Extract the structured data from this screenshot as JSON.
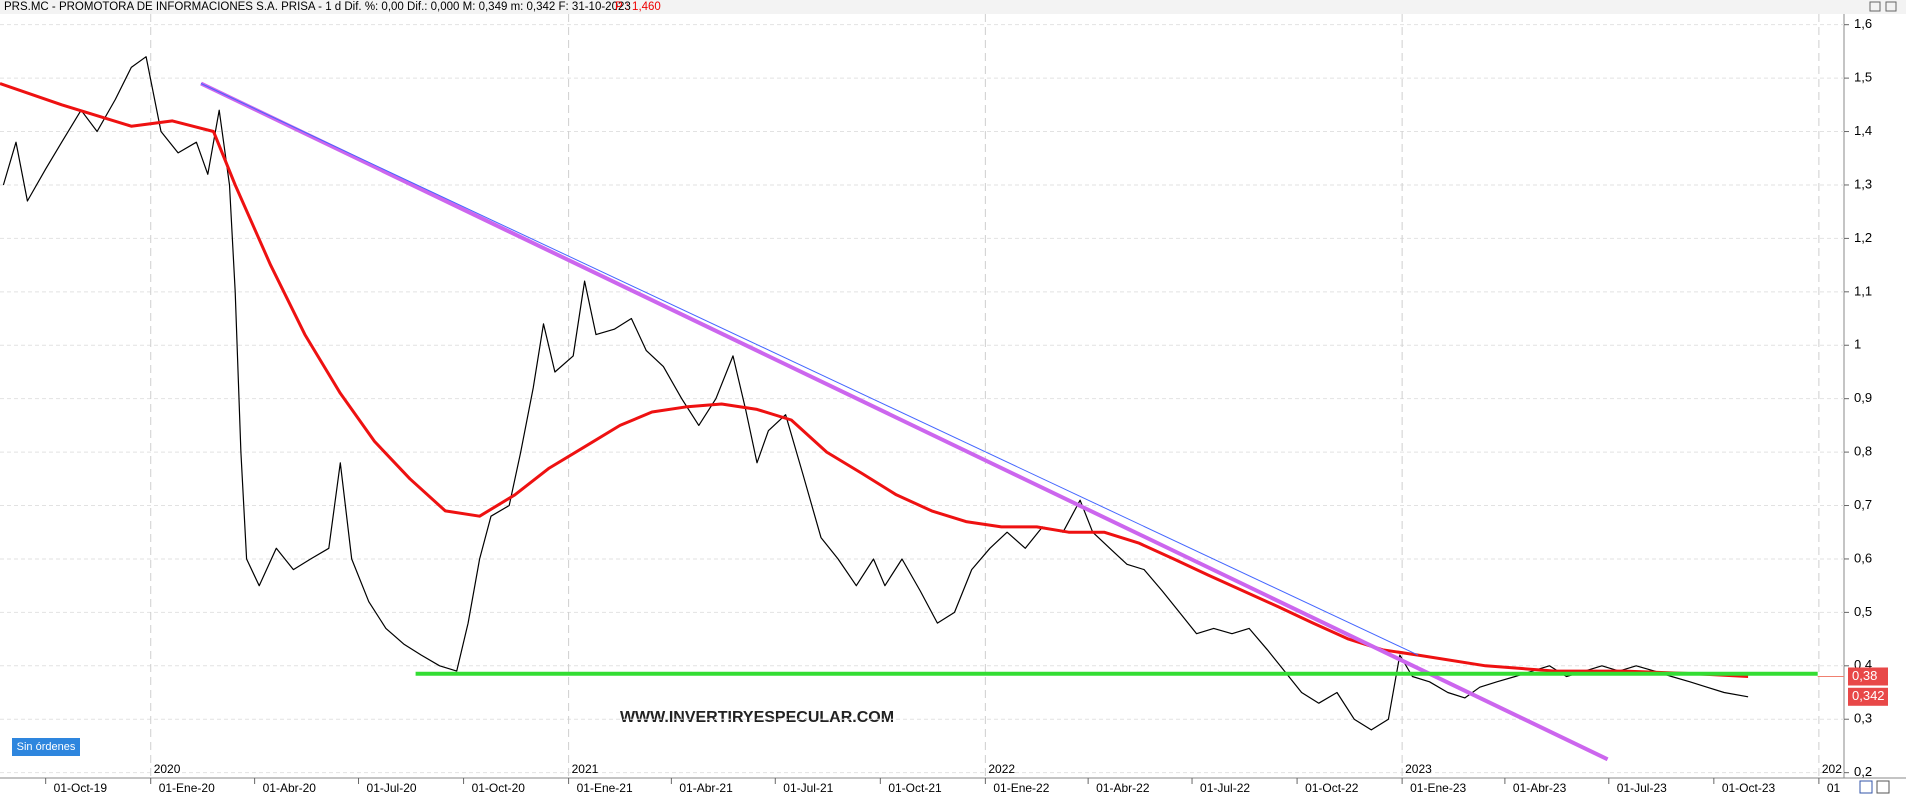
{
  "header": {
    "title": "PRS.MC - PROMOTORA DE INFORMACIONES S.A. PRISA - 1 d  Dif. %: 0,00  Dif.: 0,000  M: 0,349  m: 0,342  F: 31-10-2023",
    "price": "P : 1,460"
  },
  "watermark": "WWW.INVERTIRYESPECULAR.COM",
  "orders_badge": "Sin órdenes",
  "chart_data": {
    "type": "line",
    "xlim": [
      "2019-08-22",
      "2024-01-23"
    ],
    "ylim": [
      0.19,
      1.62
    ],
    "yticks": [
      {
        "value": 0.2,
        "label": "0,2"
      },
      {
        "value": 0.3,
        "label": "0,3"
      },
      {
        "value": 0.4,
        "label": "0,4"
      },
      {
        "value": 0.5,
        "label": "0,5"
      },
      {
        "value": 0.6,
        "label": "0,6"
      },
      {
        "value": 0.7,
        "label": "0,7"
      },
      {
        "value": 0.8,
        "label": "0,8"
      },
      {
        "value": 0.9,
        "label": "0,9"
      },
      1,
      {
        "value": 1.1,
        "label": "1,1"
      },
      {
        "value": 1.2,
        "label": "1,2"
      },
      {
        "value": 1.3,
        "label": "1,3"
      },
      {
        "value": 1.4,
        "label": "1,4"
      },
      {
        "value": 1.5,
        "label": "1,5"
      },
      {
        "value": 1.6,
        "label": "1,6"
      }
    ],
    "xticks": [
      {
        "value": "2019-10-01",
        "label": "01-Oct-19"
      },
      {
        "value": "2020-01-01",
        "label": "01-Ene-20"
      },
      {
        "value": "2020-04-01",
        "label": "01-Abr-20"
      },
      {
        "value": "2020-07-01",
        "label": "01-Jul-20"
      },
      {
        "value": "2020-10-01",
        "label": "01-Oct-20"
      },
      {
        "value": "2021-01-01",
        "label": "01-Ene-21"
      },
      {
        "value": "2021-04-01",
        "label": "01-Abr-21"
      },
      {
        "value": "2021-07-01",
        "label": "01-Jul-21"
      },
      {
        "value": "2021-10-01",
        "label": "01-Oct-21"
      },
      {
        "value": "2022-01-01",
        "label": "01-Ene-22"
      },
      {
        "value": "2022-04-01",
        "label": "01-Abr-22"
      },
      {
        "value": "2022-07-01",
        "label": "01-Jul-22"
      },
      {
        "value": "2022-10-01",
        "label": "01-Oct-22"
      },
      {
        "value": "2023-01-01",
        "label": "01-Ene-23"
      },
      {
        "value": "2023-04-01",
        "label": "01-Abr-23"
      },
      {
        "value": "2023-07-01",
        "label": "01-Jul-23"
      },
      {
        "value": "2023-10-01",
        "label": "01-Oct-23"
      },
      {
        "value": "2024-01-01",
        "label": "01"
      }
    ],
    "year_ticks": [
      {
        "value": "2020-01-01",
        "label": "2020"
      },
      {
        "value": "2021-01-01",
        "label": "2021"
      },
      {
        "value": "2022-01-01",
        "label": "2022"
      },
      {
        "value": "2023-01-01",
        "label": "2023"
      },
      {
        "value": "2024-01-01",
        "label": "202"
      }
    ],
    "grid": true,
    "series": [
      {
        "color": "#000000",
        "width": 1.2,
        "x": [
          "2019-08-25",
          "2019-09-05",
          "2019-09-15",
          "2019-10-01",
          "2019-10-15",
          "2019-11-01",
          "2019-11-15",
          "2019-12-01",
          "2019-12-15",
          "2019-12-28",
          "2020-01-10",
          "2020-01-25",
          "2020-02-10",
          "2020-02-20",
          "2020-03-01",
          "2020-03-10",
          "2020-03-15",
          "2020-03-20",
          "2020-03-25",
          "2020-04-05",
          "2020-04-20",
          "2020-05-05",
          "2020-05-20",
          "2020-06-05",
          "2020-06-15",
          "2020-06-25",
          "2020-07-10",
          "2020-07-25",
          "2020-08-10",
          "2020-08-25",
          "2020-09-10",
          "2020-09-25",
          "2020-10-05",
          "2020-10-15",
          "2020-10-25",
          "2020-11-10",
          "2020-11-20",
          "2020-12-01",
          "2020-12-10",
          "2020-12-20",
          "2021-01-05",
          "2021-01-15",
          "2021-01-25",
          "2021-02-10",
          "2021-02-25",
          "2021-03-10",
          "2021-03-25",
          "2021-04-10",
          "2021-04-25",
          "2021-05-10",
          "2021-05-25",
          "2021-06-05",
          "2021-06-15",
          "2021-06-25",
          "2021-07-10",
          "2021-07-25",
          "2021-08-10",
          "2021-08-25",
          "2021-09-10",
          "2021-09-25",
          "2021-10-05",
          "2021-10-20",
          "2021-11-05",
          "2021-11-20",
          "2021-12-05",
          "2021-12-20",
          "2022-01-05",
          "2022-01-20",
          "2022-02-05",
          "2022-02-20",
          "2022-03-10",
          "2022-03-25",
          "2022-04-05",
          "2022-04-20",
          "2022-05-05",
          "2022-05-20",
          "2022-06-05",
          "2022-06-20",
          "2022-07-05",
          "2022-07-20",
          "2022-08-05",
          "2022-08-20",
          "2022-09-05",
          "2022-09-20",
          "2022-10-05",
          "2022-10-20",
          "2022-11-05",
          "2022-11-20",
          "2022-12-05",
          "2022-12-20",
          "2022-12-30",
          "2023-01-10",
          "2023-01-25",
          "2023-02-10",
          "2023-02-25",
          "2023-03-10",
          "2023-03-25",
          "2023-04-10",
          "2023-04-25",
          "2023-05-10",
          "2023-05-25",
          "2023-06-10",
          "2023-06-25",
          "2023-07-10",
          "2023-07-25",
          "2023-08-10",
          "2023-08-25",
          "2023-09-10",
          "2023-09-25",
          "2023-10-10",
          "2023-10-31"
        ],
        "values": [
          1.3,
          1.38,
          1.27,
          1.33,
          1.38,
          1.44,
          1.4,
          1.46,
          1.52,
          1.54,
          1.4,
          1.36,
          1.38,
          1.32,
          1.44,
          1.3,
          1.1,
          0.8,
          0.6,
          0.55,
          0.62,
          0.58,
          0.6,
          0.62,
          0.78,
          0.6,
          0.52,
          0.47,
          0.44,
          0.42,
          0.4,
          0.39,
          0.48,
          0.6,
          0.68,
          0.7,
          0.8,
          0.92,
          1.04,
          0.95,
          0.98,
          1.12,
          1.02,
          1.03,
          1.05,
          0.99,
          0.96,
          0.9,
          0.85,
          0.9,
          0.98,
          0.88,
          0.78,
          0.84,
          0.87,
          0.76,
          0.64,
          0.6,
          0.55,
          0.6,
          0.55,
          0.6,
          0.54,
          0.48,
          0.5,
          0.58,
          0.62,
          0.65,
          0.62,
          0.66,
          0.65,
          0.71,
          0.65,
          0.62,
          0.59,
          0.58,
          0.54,
          0.5,
          0.46,
          0.47,
          0.46,
          0.47,
          0.43,
          0.39,
          0.35,
          0.33,
          0.35,
          0.3,
          0.28,
          0.3,
          0.42,
          0.38,
          0.37,
          0.35,
          0.34,
          0.36,
          0.37,
          0.38,
          0.39,
          0.4,
          0.38,
          0.39,
          0.4,
          0.39,
          0.4,
          0.39,
          0.38,
          0.37,
          0.36,
          0.35,
          0.342
        ]
      },
      {
        "color": "#ee1111",
        "width": 3,
        "x": [
          "2019-08-22",
          "2019-10-15",
          "2019-12-15",
          "2020-01-20",
          "2020-02-25",
          "2020-03-15",
          "2020-04-15",
          "2020-05-15",
          "2020-06-15",
          "2020-07-15",
          "2020-08-15",
          "2020-09-15",
          "2020-10-15",
          "2020-11-15",
          "2020-12-15",
          "2021-01-15",
          "2021-02-15",
          "2021-03-15",
          "2021-04-15",
          "2021-05-15",
          "2021-06-15",
          "2021-07-15",
          "2021-08-15",
          "2021-09-15",
          "2021-10-15",
          "2021-11-15",
          "2021-12-15",
          "2022-01-15",
          "2022-02-15",
          "2022-03-15",
          "2022-04-15",
          "2022-05-15",
          "2022-06-15",
          "2022-07-15",
          "2022-08-15",
          "2022-09-15",
          "2022-10-15",
          "2022-11-15",
          "2022-12-15",
          "2023-01-15",
          "2023-03-15",
          "2023-05-15",
          "2023-07-15",
          "2023-09-15",
          "2023-10-31"
        ],
        "values": [
          1.49,
          1.45,
          1.41,
          1.42,
          1.4,
          1.3,
          1.15,
          1.02,
          0.91,
          0.82,
          0.75,
          0.69,
          0.68,
          0.72,
          0.77,
          0.81,
          0.85,
          0.875,
          0.885,
          0.89,
          0.88,
          0.86,
          0.8,
          0.76,
          0.72,
          0.69,
          0.67,
          0.66,
          0.66,
          0.65,
          0.65,
          0.63,
          0.6,
          0.57,
          0.54,
          0.51,
          0.48,
          0.45,
          0.43,
          0.42,
          0.4,
          0.39,
          0.39,
          0.385,
          0.38
        ]
      }
    ],
    "lines": [
      {
        "x": [
          "2020-02-14",
          "2023-06-30"
        ],
        "values": [
          1.49,
          0.225
        ],
        "color": "#cc66ee",
        "width": 4
      },
      {
        "x": [
          "2020-02-14",
          "2023-01-15"
        ],
        "values": [
          1.49,
          0.42
        ],
        "color": "#4466ff",
        "width": 1
      },
      {
        "x": [
          "2020-08-20",
          "2023-12-31"
        ],
        "values": [
          0.385,
          0.385
        ],
        "color": "#33dd33",
        "width": 4
      },
      {
        "x": [
          "2023-12-31",
          "2024-01-23"
        ],
        "values": [
          0.38,
          0.38
        ],
        "color": "#f08070",
        "width": 1
      }
    ],
    "price_tags": [
      {
        "value": 0.38,
        "label": "0,38"
      },
      {
        "value": 0.342,
        "label": "0,342"
      }
    ],
    "tag_color": "#e84848"
  }
}
